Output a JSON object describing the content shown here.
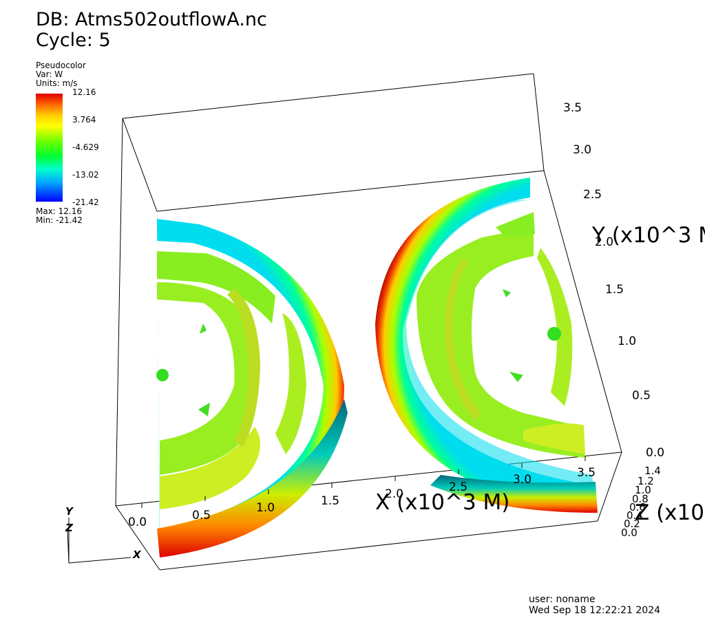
{
  "header": {
    "db_label": "DB: Atms502outflowA.nc",
    "cycle_label": "Cycle: 5"
  },
  "legend": {
    "plot_type": "Pseudocolor",
    "var": "Var: W",
    "units": "Units: m/s",
    "ticks": [
      "12.16",
      "3.764",
      "-4.629",
      "-13.02",
      "-21.42"
    ],
    "max": "Max:  12.16",
    "min": "Min: -21.42",
    "colors": [
      "#e00000",
      "#ffcc00",
      "#66ff00",
      "#00ffcc",
      "#0000ff"
    ]
  },
  "axes": {
    "x_ticks": [
      "0.0",
      "0.5",
      "1.0",
      "1.5",
      "2.0",
      "2.5",
      "3.0",
      "3.5"
    ],
    "y_ticks": [
      "0.0",
      "0.5",
      "1.0",
      "1.5",
      "2.0",
      "2.5",
      "3.0",
      "3.5"
    ],
    "z_ticks": [
      "0.0",
      "0.2",
      "0.4",
      "0.6",
      "0.8",
      "1.0",
      "1.2",
      "1.4"
    ],
    "x_title": "X (x10^3 M)",
    "y_title": "Y (x10^3 M",
    "z_title": "Z (x10",
    "triad": {
      "x": "X",
      "y": "Y",
      "z": "Z"
    }
  },
  "footer": {
    "user": "user: noname",
    "date": "Wed Sep 18 12:22:21 2024"
  }
}
